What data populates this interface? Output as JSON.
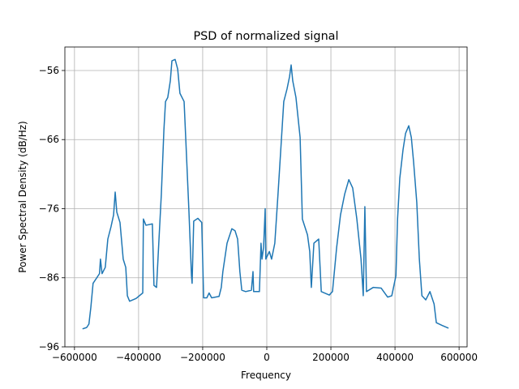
{
  "chart_data": {
    "type": "line",
    "title": "PSD of normalized signal",
    "xlabel": "Frequency",
    "ylabel": "Power Spectral Density (dB/Hz)",
    "grid": true,
    "xlim": [
      -630000,
      625000
    ],
    "ylim": [
      -96,
      -52.6
    ],
    "xticks": [
      {
        "value": -600000,
        "label": "−600000"
      },
      {
        "value": -400000,
        "label": "−400000"
      },
      {
        "value": -200000,
        "label": "−200000"
      },
      0,
      200000,
      400000,
      600000
    ],
    "yticks": [
      {
        "value": -96,
        "label": "−96"
      },
      {
        "value": -86,
        "label": "−86"
      },
      {
        "value": -76,
        "label": "−76"
      },
      {
        "value": -66,
        "label": "−66"
      },
      {
        "value": -56,
        "label": "−56"
      }
    ],
    "x": [
      -575000,
      -562000,
      -555000,
      -549000,
      -542000,
      -529000,
      -522000,
      -519000,
      -514000,
      -504000,
      -496000,
      -486000,
      -478000,
      -473000,
      -468000,
      -458000,
      -448000,
      -440000,
      -435000,
      -428000,
      -408000,
      -387000,
      -385000,
      -377000,
      -357000,
      -352000,
      -344000,
      -337000,
      -329000,
      -321000,
      -316000,
      -309000,
      -301000,
      -296000,
      -286000,
      -278000,
      -271000,
      -258000,
      -253000,
      -243000,
      -235000,
      -233000,
      -228000,
      -215000,
      -203000,
      -197000,
      -187000,
      -180000,
      -172000,
      -149000,
      -142000,
      -137000,
      -124000,
      -109000,
      -99000,
      -91000,
      -84000,
      -78000,
      -66000,
      -48000,
      -43000,
      -41000,
      -23000,
      -18000,
      -15000,
      -10000,
      -5000,
      -3000,
      8000,
      15000,
      25000,
      35000,
      46000,
      53000,
      63000,
      71000,
      76000,
      81000,
      91000,
      104000,
      111000,
      127000,
      134000,
      139000,
      147000,
      162000,
      170000,
      195000,
      205000,
      218000,
      230000,
      243000,
      256000,
      268000,
      281000,
      294000,
      301000,
      306000,
      311000,
      332000,
      357000,
      377000,
      390000,
      403000,
      408000,
      415000,
      425000,
      433000,
      443000,
      451000,
      458000,
      468000,
      476000,
      484000,
      496000,
      509000,
      522000,
      529000,
      547000,
      567000
    ],
    "series": [
      {
        "color": "#1f77b4",
        "values": [
          -93.4,
          -93.2,
          -92.7,
          -90.3,
          -86.8,
          -85.9,
          -85.4,
          -83.3,
          -85.4,
          -84.5,
          -80.4,
          -78.6,
          -76.9,
          -73.6,
          -76.5,
          -78,
          -83.3,
          -84.5,
          -88.6,
          -89.4,
          -89,
          -88.2,
          -77.5,
          -78.4,
          -78.2,
          -87.1,
          -87.4,
          -81,
          -73.9,
          -64.6,
          -60.5,
          -59.9,
          -57.5,
          -54.6,
          -54.4,
          -55.8,
          -59.3,
          -60.5,
          -65.7,
          -76.3,
          -85.7,
          -86.8,
          -77.8,
          -77.4,
          -78,
          -88.9,
          -88.9,
          -88.2,
          -88.9,
          -88.7,
          -87.4,
          -85.1,
          -81,
          -78.9,
          -79.2,
          -80.4,
          -85.1,
          -87.8,
          -88,
          -87.8,
          -85.1,
          -88,
          -88,
          -81,
          -83.3,
          -81.6,
          -76,
          -83.3,
          -82.2,
          -83.3,
          -81,
          -73.9,
          -65.7,
          -60.5,
          -58.7,
          -56.9,
          -55.2,
          -57.5,
          -59.9,
          -65.7,
          -77.5,
          -79.8,
          -82.2,
          -87.4,
          -81,
          -80.4,
          -88,
          -88.5,
          -88,
          -81.6,
          -76.9,
          -73.9,
          -71.8,
          -73,
          -77.5,
          -83.3,
          -88.6,
          -75.7,
          -88,
          -87.4,
          -87.5,
          -88.8,
          -88.6,
          -85.7,
          -77.5,
          -71.6,
          -67.5,
          -65.1,
          -64,
          -65.7,
          -69.2,
          -75.1,
          -83.3,
          -88.6,
          -89.2,
          -88,
          -89.8,
          -92.5,
          -92.9,
          -93.3
        ]
      }
    ]
  }
}
